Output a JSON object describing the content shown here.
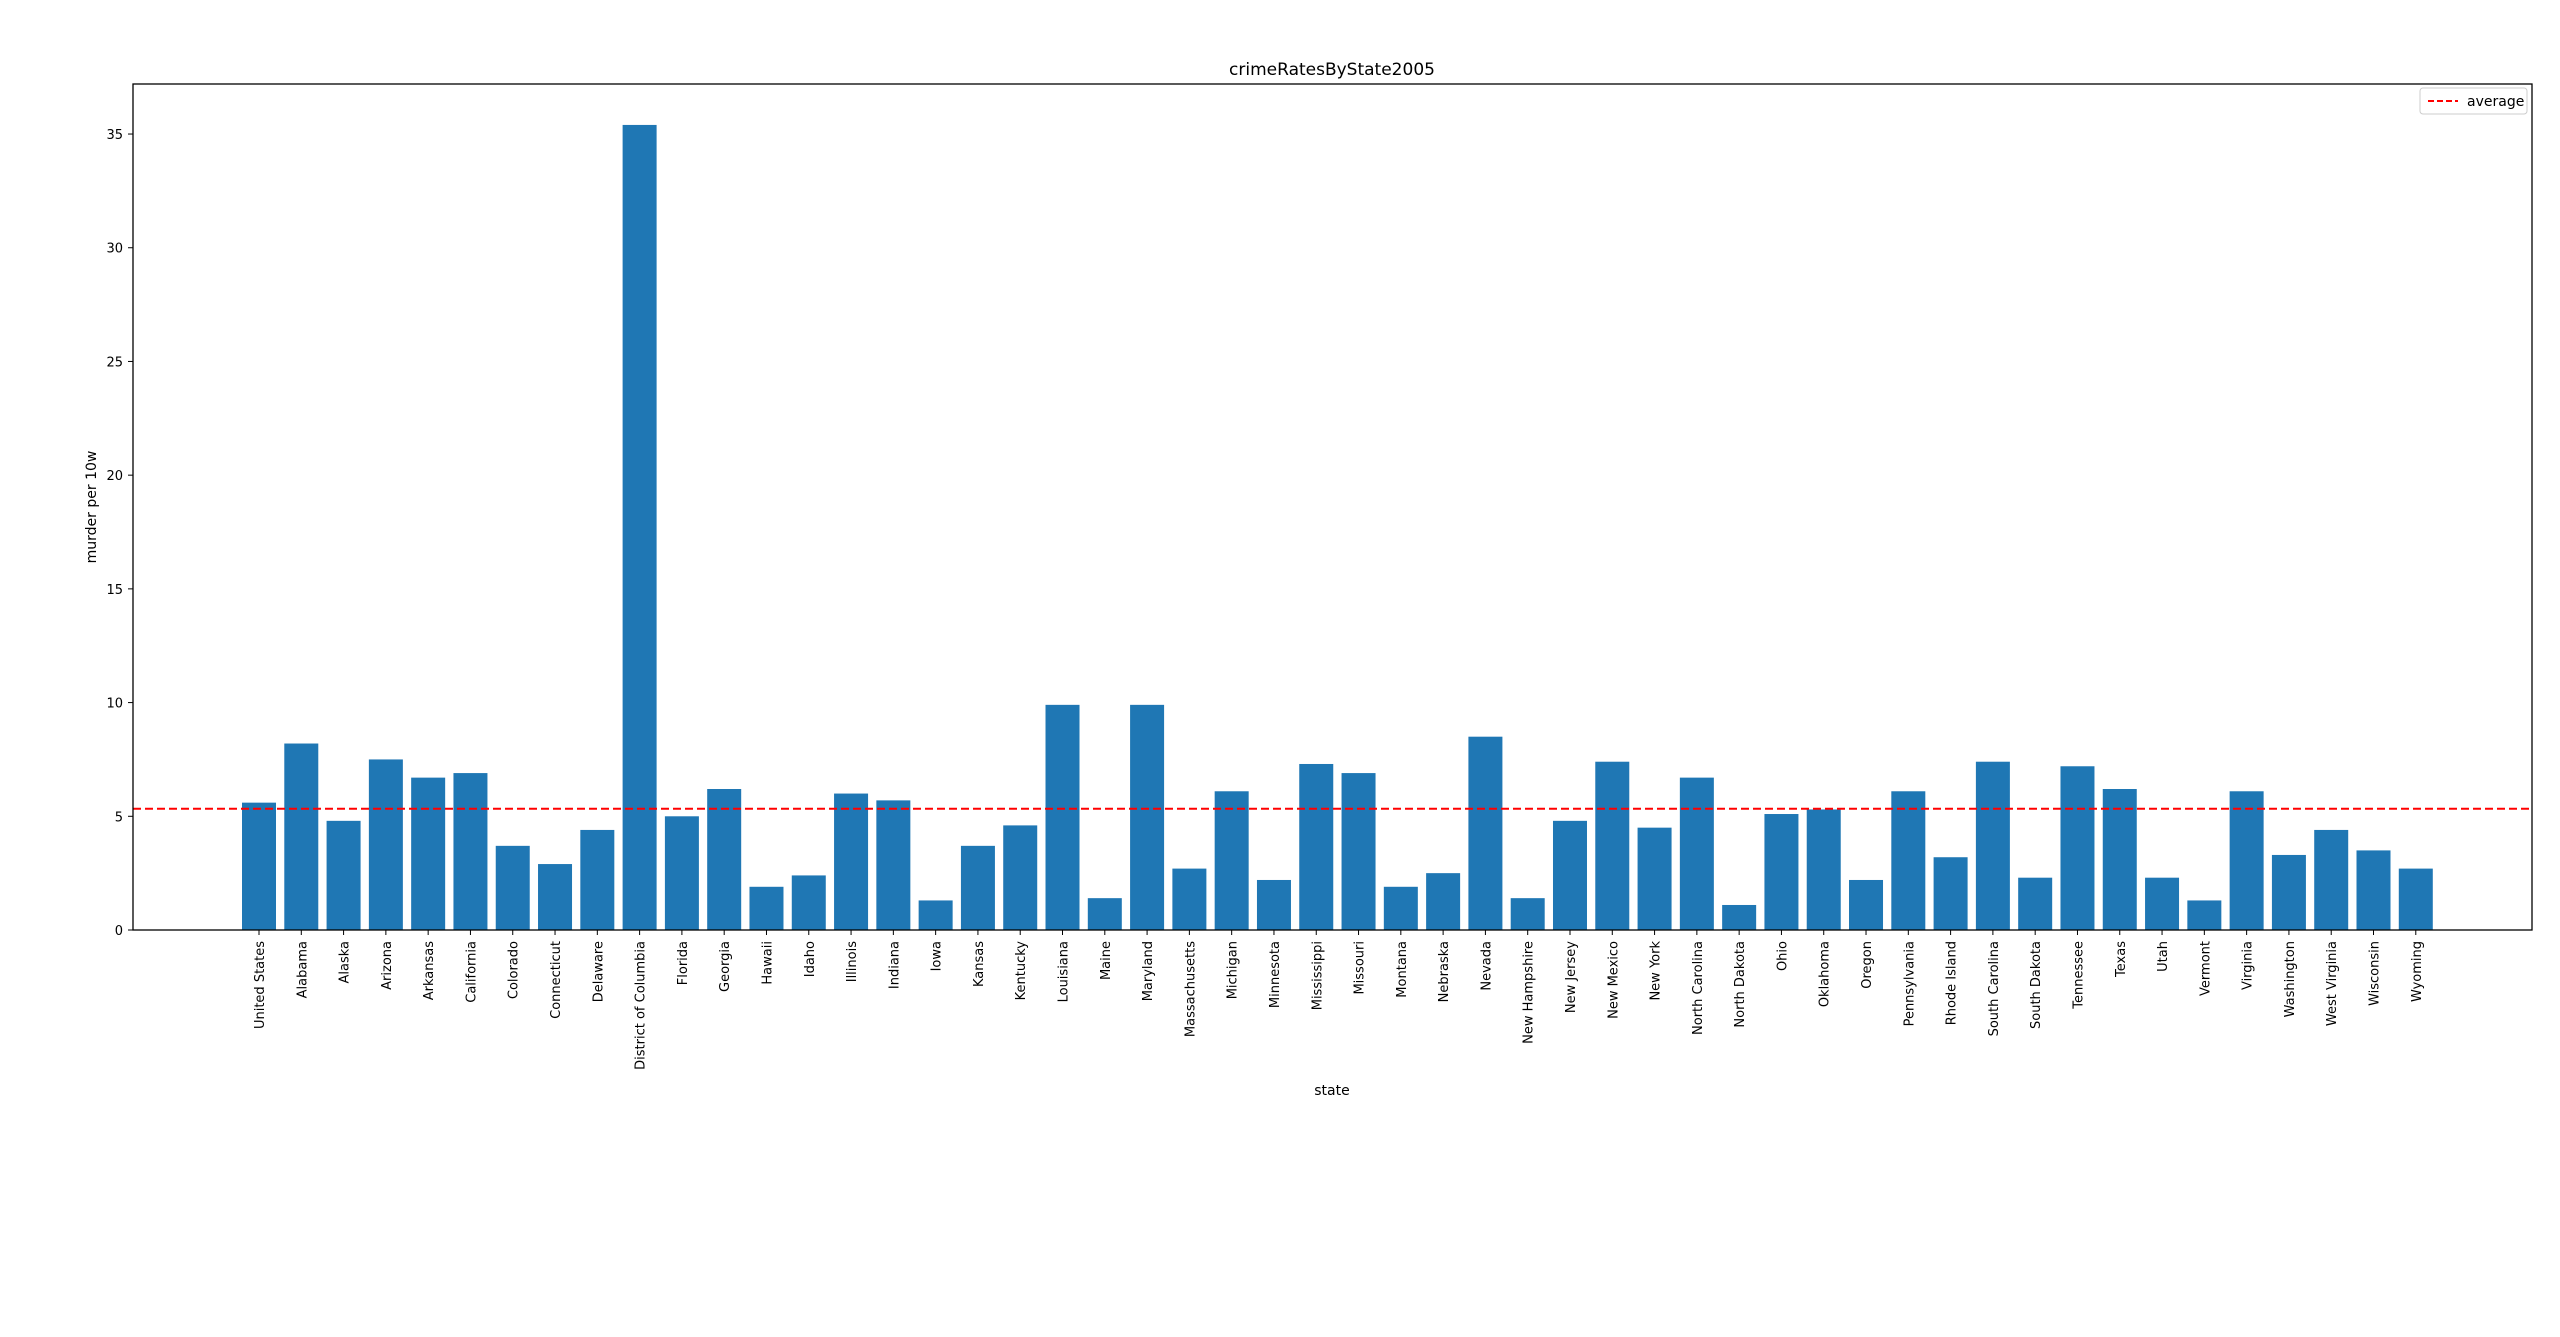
{
  "chart_data": {
    "type": "bar",
    "title": "crimeRatesByState2005",
    "xlabel": "state",
    "ylabel": "murder per 10w",
    "ylim": [
      0,
      37.2
    ],
    "yticks": [
      0,
      5,
      10,
      15,
      20,
      25,
      30,
      35
    ],
    "grid": false,
    "legend_placement": "top-right",
    "colors": {
      "bar": "#1f77b4",
      "average_line": "#ff0000"
    },
    "categories": [
      "United States",
      "Alabama",
      "Alaska",
      "Arizona",
      "Arkansas",
      "California",
      "Colorado",
      "Connecticut",
      "Delaware",
      "District of Columbia",
      "Florida",
      "Georgia",
      "Hawaii",
      "Idaho",
      "Illinois",
      "Indiana",
      "Iowa",
      "Kansas",
      "Kentucky",
      "Louisiana",
      "Maine",
      "Maryland",
      "Massachusetts",
      "Michigan",
      "Minnesota",
      "Mississippi",
      "Missouri",
      "Montana",
      "Nebraska",
      "Nevada",
      "New Hampshire",
      "New Jersey",
      "New Mexico",
      "New York",
      "North Carolina",
      "North Dakota",
      "Ohio",
      "Oklahoma",
      "Oregon",
      "Pennsylvania",
      "Rhode Island",
      "South Carolina",
      "South Dakota",
      "Tennessee",
      "Texas",
      "Utah",
      "Vermont",
      "Virginia",
      "Washington",
      "West Virginia",
      "Wisconsin",
      "Wyoming"
    ],
    "values": [
      5.6,
      8.2,
      4.8,
      7.5,
      6.7,
      6.9,
      3.7,
      2.9,
      4.4,
      35.4,
      5.0,
      6.2,
      1.9,
      2.4,
      6.0,
      5.7,
      1.3,
      3.7,
      4.6,
      9.9,
      1.4,
      9.9,
      2.7,
      6.1,
      2.2,
      7.3,
      6.9,
      1.9,
      2.5,
      8.5,
      1.4,
      4.8,
      7.4,
      4.5,
      6.7,
      1.1,
      5.1,
      5.3,
      2.2,
      6.1,
      3.2,
      7.4,
      2.3,
      7.2,
      6.2,
      2.3,
      1.3,
      6.1,
      3.3,
      4.4,
      3.5,
      2.7
    ],
    "average": {
      "label": "average",
      "value": 5.33,
      "style": "dashed"
    }
  }
}
